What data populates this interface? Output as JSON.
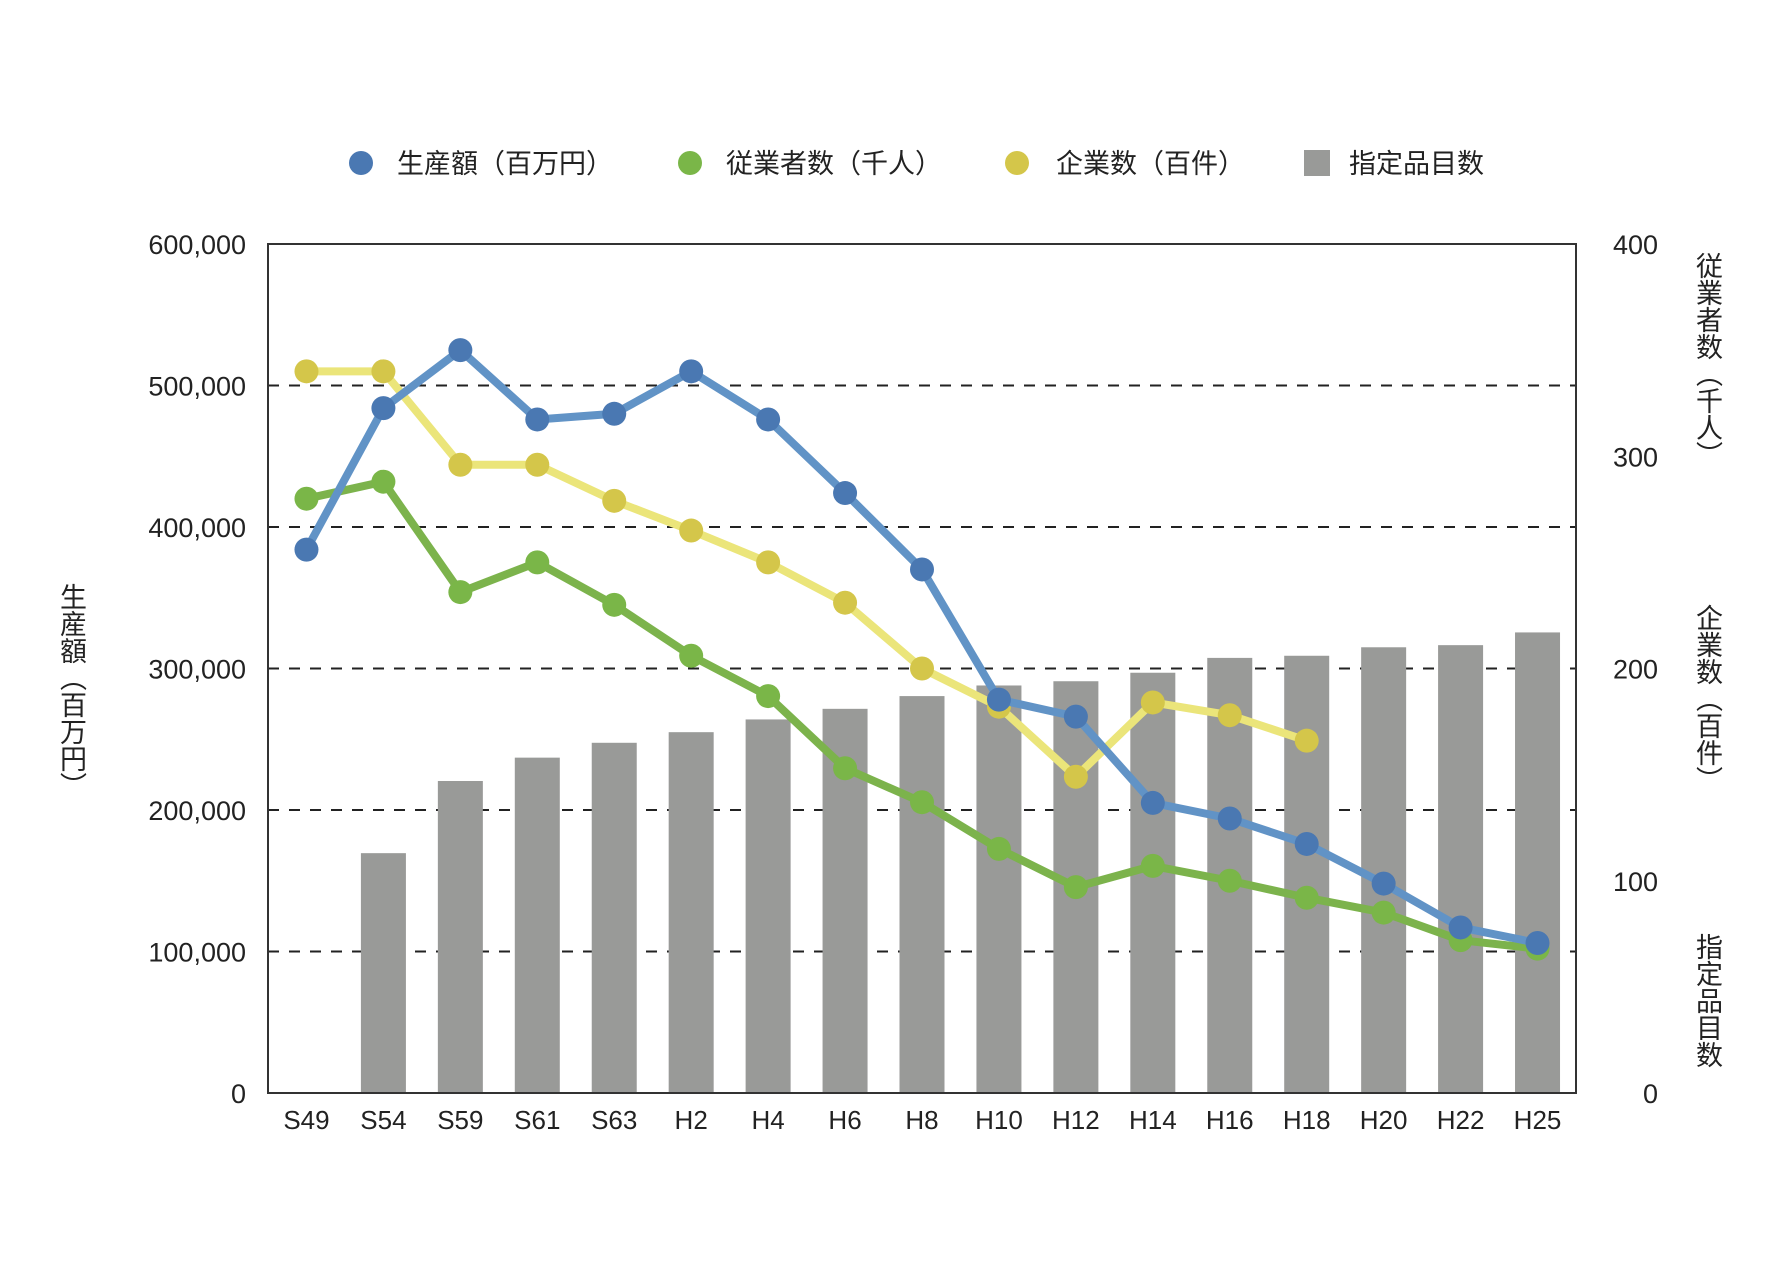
{
  "chart_data": {
    "type": "bar+line",
    "title": "",
    "categories": [
      "S49",
      "S54",
      "S59",
      "S61",
      "S63",
      "H2",
      "H4",
      "H6",
      "H8",
      "H10",
      "H12",
      "H14",
      "H16",
      "H18",
      "H20",
      "H22",
      "H25"
    ],
    "left_axis": {
      "label": "生産額（百万円）",
      "ylim": [
        0,
        600000
      ],
      "ticks": [
        0,
        100000,
        200000,
        300000,
        400000,
        500000,
        600000
      ],
      "tick_labels": [
        "0",
        "100,000",
        "200,000",
        "300,000",
        "400,000",
        "500,000",
        "600,000"
      ]
    },
    "right_axis": {
      "labels": [
        "従業者数（千人）",
        "企業数（百件）",
        "指定品目数"
      ],
      "ylim": [
        0,
        400
      ],
      "ticks": [
        0,
        100,
        200,
        300,
        400
      ],
      "tick_labels": [
        "0",
        "100",
        "200",
        "300",
        "400"
      ]
    },
    "grid": "dashed-horizontal",
    "legend_position": "top",
    "series": [
      {
        "name": "指定品目数",
        "type": "bar",
        "axis": "right",
        "color": "#999a98",
        "values": [
          null,
          113,
          147,
          158,
          165,
          170,
          176,
          181,
          187,
          192,
          194,
          198,
          205,
          206,
          210,
          211,
          217
        ]
      },
      {
        "name": "企業数（百件）",
        "type": "line",
        "axis": "right",
        "color": "#d4c64a",
        "line_color": "#ebe57a",
        "values": [
          340,
          340,
          296,
          296,
          279,
          265,
          250,
          231,
          200,
          182,
          149,
          184,
          178,
          166,
          null,
          null,
          null
        ]
      },
      {
        "name": "従業者数（千人）",
        "type": "line",
        "axis": "right",
        "color": "#7ab648",
        "line_color": "#7cb34c",
        "values": [
          280,
          288,
          236,
          250,
          230,
          206,
          187,
          153,
          137,
          115,
          97,
          107,
          100,
          92,
          85,
          72,
          68
        ]
      },
      {
        "name": "生産額（百万円）",
        "type": "line",
        "axis": "left",
        "color": "#4a78b2",
        "line_color": "#6193c6",
        "values": [
          384000,
          484000,
          525000,
          476000,
          480000,
          510000,
          476000,
          424000,
          370000,
          278000,
          266000,
          205000,
          194000,
          176000,
          148000,
          117000,
          106000
        ]
      }
    ],
    "legend": [
      {
        "label": "生産額（百万円）",
        "marker": "circle",
        "color": "#4a78b2"
      },
      {
        "label": "従業者数（千人）",
        "marker": "circle",
        "color": "#7ab648"
      },
      {
        "label": "企業数（百件）",
        "marker": "circle",
        "color": "#d4c64a"
      },
      {
        "label": "指定品目数",
        "marker": "square",
        "color": "#999a98"
      }
    ]
  }
}
